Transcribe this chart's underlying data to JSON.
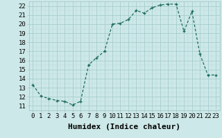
{
  "x": [
    0,
    1,
    2,
    3,
    4,
    5,
    6,
    7,
    8,
    9,
    10,
    11,
    12,
    13,
    14,
    15,
    16,
    17,
    18,
    19,
    20,
    21,
    22,
    23
  ],
  "y": [
    13.3,
    12.1,
    11.8,
    11.6,
    11.5,
    11.1,
    11.5,
    15.5,
    16.3,
    17.0,
    20.0,
    20.1,
    20.5,
    21.5,
    21.2,
    21.8,
    22.1,
    22.2,
    22.2,
    19.2,
    21.4,
    16.7,
    14.4,
    14.4
  ],
  "xlabel": "Humidex (Indice chaleur)",
  "ylabel": "",
  "xlim": [
    -0.5,
    23.5
  ],
  "ylim": [
    10.5,
    22.5
  ],
  "yticks": [
    11,
    12,
    13,
    14,
    15,
    16,
    17,
    18,
    19,
    20,
    21,
    22
  ],
  "xticks": [
    0,
    1,
    2,
    3,
    4,
    5,
    6,
    7,
    8,
    9,
    10,
    11,
    12,
    13,
    14,
    15,
    16,
    17,
    18,
    19,
    20,
    21,
    22,
    23
  ],
  "line_color": "#1a6b5a",
  "marker_color": "#1a6b5a",
  "bg_color": "#cde8e8",
  "grid_minor_color": "#b8d8d8",
  "grid_major_color": "#a0c8c8",
  "xlabel_fontsize": 8,
  "tick_fontsize": 6.5
}
